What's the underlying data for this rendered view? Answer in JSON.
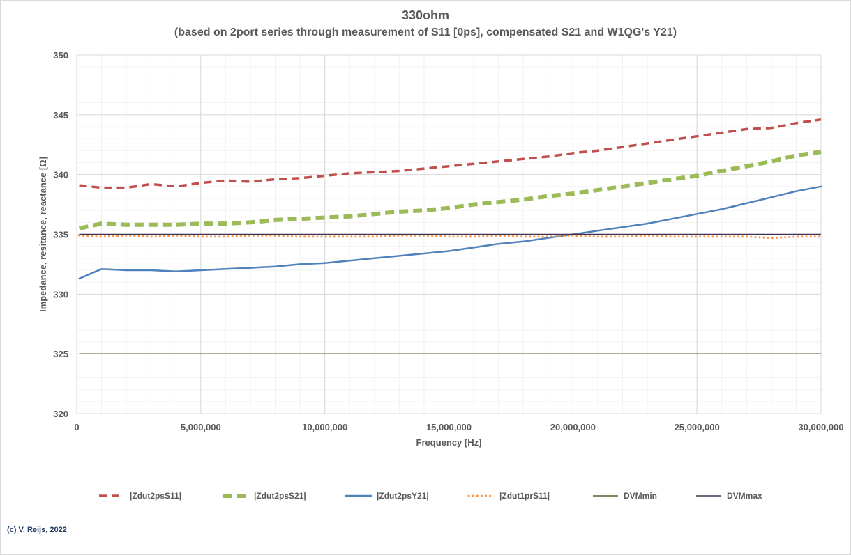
{
  "chart_data": {
    "type": "line",
    "title": "330ohm",
    "subtitle": "(based on 2port series through measurement of S11 [0ps], compensated S21 and W1QG's Y21)",
    "xlabel": "Frequency [Hz]",
    "ylabel": "Impedance, resitance, reactance [Ω]",
    "xlim": [
      0,
      30000000
    ],
    "ylim": [
      320,
      350
    ],
    "x_ticks": [
      0,
      5000000,
      10000000,
      15000000,
      20000000,
      25000000,
      30000000
    ],
    "x_tick_labels": [
      "0",
      "5,000,000",
      "10,000,000",
      "15,000,000",
      "20,000,000",
      "25,000,000",
      "30,000,000"
    ],
    "y_ticks": [
      320,
      325,
      330,
      335,
      340,
      345,
      350
    ],
    "y_tick_labels": [
      "320",
      "325",
      "330",
      "335",
      "340",
      "345",
      "350"
    ],
    "grid": true,
    "legend_position": "bottom",
    "x": [
      100000,
      1000000,
      2000000,
      3000000,
      4000000,
      5000000,
      6000000,
      7000000,
      8000000,
      9000000,
      10000000,
      11000000,
      12000000,
      13000000,
      14000000,
      15000000,
      16000000,
      17000000,
      18000000,
      19000000,
      20000000,
      21000000,
      22000000,
      23000000,
      24000000,
      25000000,
      26000000,
      27000000,
      28000000,
      29000000,
      30000000
    ],
    "series": [
      {
        "name": "|Zdut2psS11|",
        "color": "#c0504d",
        "style": "dashed",
        "values": [
          339.1,
          338.9,
          338.9,
          339.2,
          339.0,
          339.3,
          339.5,
          339.4,
          339.6,
          339.7,
          339.9,
          340.1,
          340.2,
          340.3,
          340.5,
          340.7,
          340.9,
          341.1,
          341.3,
          341.5,
          341.8,
          342.0,
          342.3,
          342.6,
          342.9,
          343.2,
          343.5,
          343.8,
          343.9,
          344.3,
          344.6
        ]
      },
      {
        "name": "|Zdut2psS21|",
        "color": "#9bbb59",
        "style": "dashed-thick",
        "values": [
          335.5,
          335.9,
          335.8,
          335.8,
          335.8,
          335.9,
          335.9,
          336.0,
          336.2,
          336.3,
          336.4,
          336.5,
          336.7,
          336.9,
          337.0,
          337.2,
          337.5,
          337.7,
          337.9,
          338.2,
          338.4,
          338.7,
          339.0,
          339.3,
          339.6,
          339.9,
          340.3,
          340.7,
          341.1,
          341.6,
          341.9
        ]
      },
      {
        "name": "|Zdut2psY21|",
        "color": "#4f81bd",
        "style": "solid",
        "values": [
          331.3,
          332.1,
          332.0,
          332.0,
          331.9,
          332.0,
          332.1,
          332.2,
          332.3,
          332.5,
          332.6,
          332.8,
          333.0,
          333.2,
          333.4,
          333.6,
          333.9,
          334.2,
          334.4,
          334.7,
          335.0,
          335.3,
          335.6,
          335.9,
          336.3,
          336.7,
          337.1,
          337.6,
          338.1,
          338.6,
          339.0
        ]
      },
      {
        "name": "|Zdut1prS11|",
        "color": "#f79646",
        "style": "dotted",
        "values": [
          334.9,
          334.8,
          334.9,
          334.8,
          334.9,
          334.8,
          334.8,
          334.9,
          334.9,
          334.8,
          334.8,
          334.8,
          334.8,
          334.9,
          334.9,
          334.8,
          334.8,
          334.9,
          334.8,
          334.8,
          334.9,
          334.8,
          334.8,
          334.9,
          334.8,
          334.8,
          334.8,
          334.8,
          334.7,
          334.8,
          334.8
        ]
      },
      {
        "name": "DVMmin",
        "color": "#4f6228",
        "style": "solid-thin",
        "values": [
          325,
          325,
          325,
          325,
          325,
          325,
          325,
          325,
          325,
          325,
          325,
          325,
          325,
          325,
          325,
          325,
          325,
          325,
          325,
          325,
          325,
          325,
          325,
          325,
          325,
          325,
          325,
          325,
          325,
          325,
          325
        ]
      },
      {
        "name": "DVMmax",
        "color": "#3f3151",
        "style": "solid-thin",
        "values": [
          335,
          335,
          335,
          335,
          335,
          335,
          335,
          335,
          335,
          335,
          335,
          335,
          335,
          335,
          335,
          335,
          335,
          335,
          335,
          335,
          335,
          335,
          335,
          335,
          335,
          335,
          335,
          335,
          335,
          335,
          335
        ]
      }
    ]
  },
  "copyright": "(c) V. Reijs, 2022"
}
